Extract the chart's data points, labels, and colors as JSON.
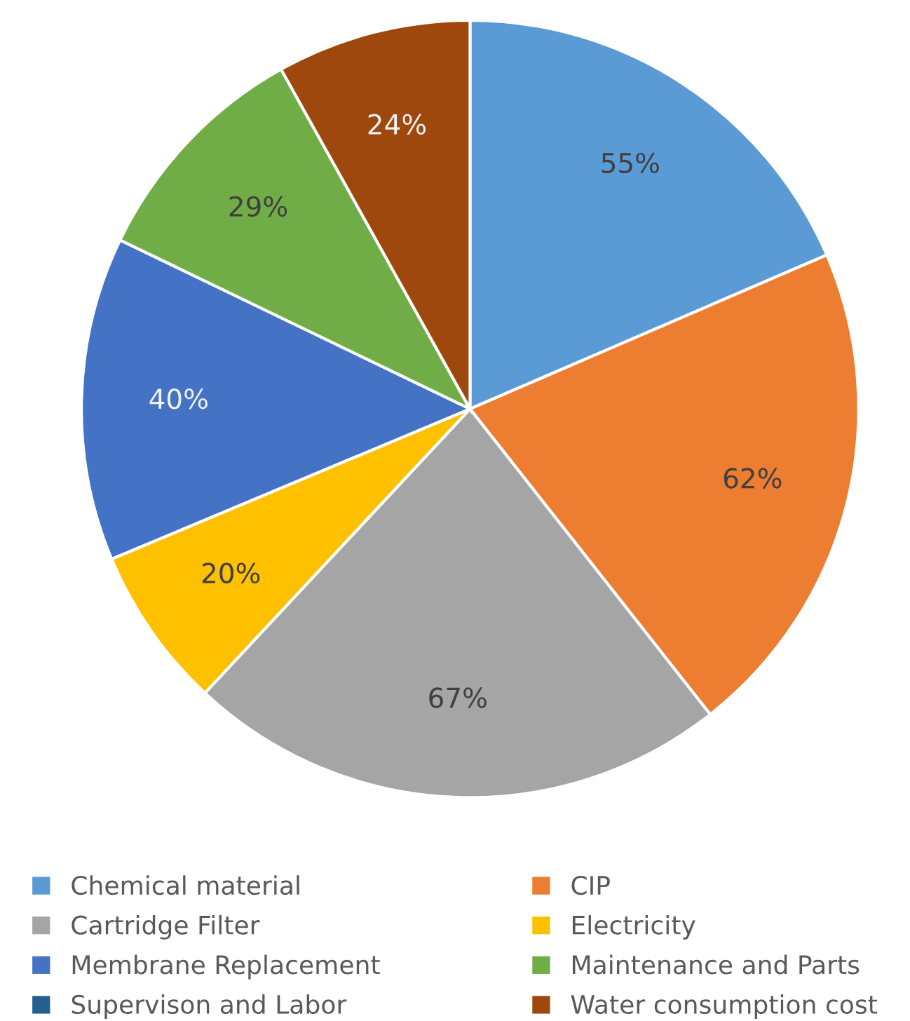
{
  "chart_data": {
    "type": "pie",
    "categories": [
      "Chemical material",
      "CIP",
      "Cartridge Filter",
      "Electricity",
      "Membrane Replacement",
      "Maintenance and Parts",
      "Supervison and Labor",
      "Water consumption cost"
    ],
    "values": [
      55,
      62,
      67,
      20,
      40,
      29,
      null,
      24
    ],
    "value_labels": [
      "55%",
      "62%",
      "67%",
      "20%",
      "40%",
      "29%",
      null,
      "24%"
    ],
    "colors": [
      "#5b9bd5",
      "#ed7d31",
      "#a5a5a5",
      "#ffc000",
      "#4472c4",
      "#70ad47",
      "#255e91",
      "#9e480e"
    ],
    "legend": "bottom"
  }
}
